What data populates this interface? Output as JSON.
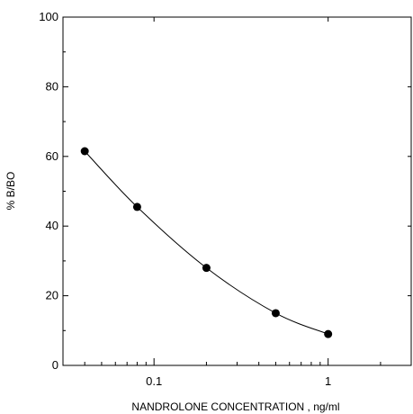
{
  "chart_data": {
    "type": "line",
    "xlabel": "NANDROLONE CONCENTRATION , ng/ml",
    "ylabel": "% B/BO",
    "xscale": "log",
    "xlim": [
      0.03,
      3
    ],
    "ylim": [
      0,
      100
    ],
    "x_ticks": [
      0.1,
      1
    ],
    "x_tick_labels": [
      "0.1",
      "1"
    ],
    "y_ticks": [
      0,
      20,
      40,
      60,
      80,
      100
    ],
    "y_tick_labels": [
      "0",
      "20",
      "40",
      "60",
      "80",
      "100"
    ],
    "grid": false,
    "legend": "none",
    "series": [
      {
        "x": [
          0.04,
          0.08,
          0.2,
          0.5,
          1
        ],
        "y": [
          61.5,
          45.5,
          28,
          15,
          9
        ]
      }
    ],
    "colors": {
      "line": "#000000",
      "marker": "#000000",
      "axis": "#000000"
    }
  }
}
